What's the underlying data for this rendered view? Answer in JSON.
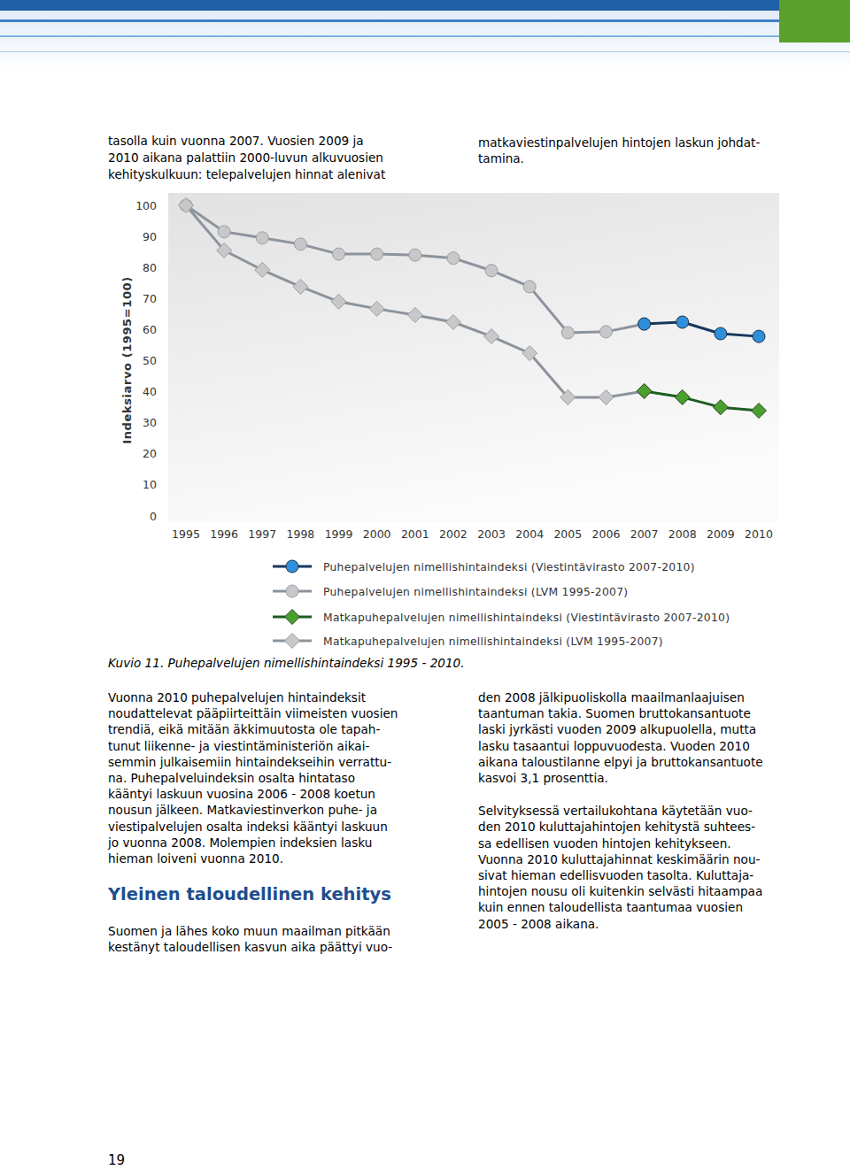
{
  "page": {
    "top_left": [
      "tasolla kuin vuonna 2007. Vuosien 2009 ja",
      "2010 aikana palattiin 2000-luvun alkuvuosien",
      "kehityskulkuun: telepalvelujen hinnat alenivat"
    ],
    "top_right": [
      "matkaviestinpalvelujen hintojen laskun johdat-",
      "tamina."
    ],
    "caption": "Kuvio 11. Puhepalvelujen nimellishintaindeksi 1995 - 2010.",
    "left_column": [
      "Vuonna 2010 puhepalvelujen hintaindeksit",
      "noudattelevat pääpiirteittäin viimeisten vuosien",
      "trendiä, eikä mitään äkkimuutosta ole tapah-",
      "tunut liikenne- ja viestintäministeriön aikai-",
      "semmin julkaisemiin hintaindekseihin verrattu-",
      "na. Puhepalveluindeksin osalta hintataso",
      "kääntyi laskuun vuosina 2006 - 2008 koetun",
      "nousun jälkeen. Matkaviestinverkon puhe- ja",
      "viestipalvelujen osalta indeksi kääntyi laskuun",
      "jo vuonna 2008. Molempien indeksien lasku",
      "hieman loiveni vuonna 2010."
    ],
    "heading": "Yleinen taloudellinen kehitys",
    "left_column_after": [
      "Suomen ja lähes koko muun maailman pitkään",
      "kestänyt taloudellisen kasvun aika päättyi vuo-"
    ],
    "right_column": [
      [
        "den 2008 jälkipuoliskolla maailmanlaajuisen",
        "taantuman takia. Suomen bruttokansantuote",
        "laski jyrkästi vuoden 2009 alkupuolella, mutta",
        "lasku tasaantui loppuvuodesta. Vuoden 2010",
        "aikana taloustilanne elpyi ja bruttokansantuote",
        "kasvoi 3,1 prosenttia."
      ],
      [
        "Selvityksessä vertailukohtana käytetään vuo-",
        "den 2010 kuluttajahintojen kehitystä suhtees-",
        "sa edellisen vuoden hintojen kehitykseen.",
        "Vuonna 2010 kuluttajahinnat keskimäärin nou-",
        "sivat hieman edellisvuoden tasolta. Kuluttaja-",
        "hintojen nousu oli kuitenkin selvästi hitaampaa",
        "kuin ennen taloudellista taantumaa vuosien",
        "2005 - 2008 aikana."
      ]
    ],
    "page_number": "19"
  },
  "chart_data": {
    "type": "line",
    "y_label": "Indeksiarvo (1995=100)",
    "categories": [
      "1995",
      "1996",
      "1997",
      "1998",
      "1999",
      "2000",
      "2001",
      "2002",
      "2003",
      "2004",
      "2005",
      "2006",
      "2007",
      "2008",
      "2009",
      "2010"
    ],
    "ylim": [
      0,
      100
    ],
    "yticks": [
      0,
      10,
      20,
      30,
      40,
      50,
      60,
      70,
      80,
      90,
      100
    ],
    "grid": false,
    "legend": "bottom",
    "series": [
      {
        "name": "Puhepalvelujen nimellishintaindeksi (Viestintävirasto 2007-2010)",
        "color": "#17375e",
        "marker": "circle",
        "values": [
          null,
          null,
          null,
          null,
          null,
          null,
          null,
          null,
          null,
          null,
          null,
          null,
          61.8,
          62.4,
          58.7,
          57.8
        ]
      },
      {
        "name": "Puhepalvelujen nimellishintaindeksi (LVM 1995-2007)",
        "color": "#8c939d",
        "marker": "circle",
        "values": [
          100,
          91.5,
          89.5,
          87.5,
          84.3,
          84.3,
          84,
          83,
          79,
          73.8,
          59,
          59.3,
          61.8,
          null,
          null,
          null
        ]
      },
      {
        "name": "Matkapuhepalvelujen nimellishintaindeksi (Viestintävirasto 2007-2010)",
        "color": "#1b5e20",
        "marker": "diamond",
        "values": [
          null,
          null,
          null,
          null,
          null,
          null,
          null,
          null,
          null,
          null,
          null,
          null,
          40.2,
          38.2,
          35,
          33.9
        ]
      },
      {
        "name": "Matkapuhepalvelujen nimellishintaindeksi (LVM 1995-2007)",
        "color": "#8c939d",
        "marker": "diamond",
        "values": [
          100,
          85.5,
          79.2,
          73.8,
          69,
          66.7,
          64.7,
          62.4,
          57.8,
          52.4,
          38.2,
          38.2,
          40.2,
          null,
          null,
          null
        ]
      }
    ]
  }
}
